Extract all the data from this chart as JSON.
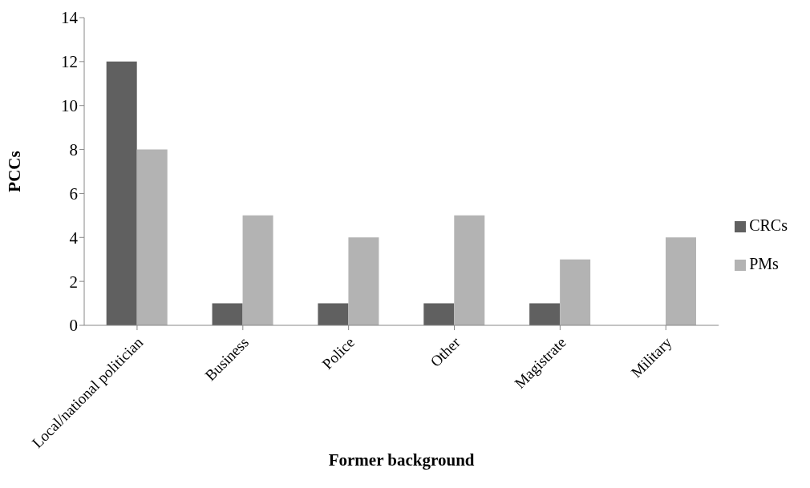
{
  "chart_data": {
    "type": "bar",
    "xlabel": "Former background",
    "ylabel": "PCCs",
    "categories": [
      "Local/national politician",
      "Business",
      "Police",
      "Other",
      "Magistrate",
      "Military"
    ],
    "series": [
      {
        "name": "CRCs",
        "color": "#606060",
        "values": [
          12,
          1,
          1,
          1,
          1,
          0
        ]
      },
      {
        "name": "PMs",
        "color": "#b3b3b3",
        "values": [
          8,
          5,
          4,
          5,
          3,
          4
        ]
      }
    ],
    "ylim": [
      0,
      14
    ],
    "yticks": [
      0,
      2,
      4,
      6,
      8,
      10,
      12,
      14
    ],
    "grid": false,
    "legend": "right"
  }
}
